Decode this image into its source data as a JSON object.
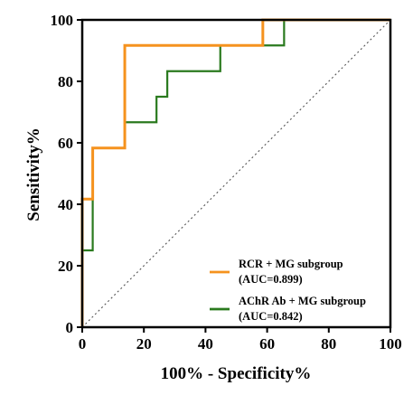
{
  "chart_data": {
    "type": "line",
    "title": "",
    "xlabel": "100% - Specificity%",
    "ylabel": "Sensitivity%",
    "xlim": [
      0,
      100
    ],
    "ylim": [
      0,
      100
    ],
    "xticks": [
      "0",
      "20",
      "40",
      "60",
      "80",
      "100"
    ],
    "yticks": [
      "0",
      "20",
      "40",
      "60",
      "80",
      "100"
    ],
    "grid": false,
    "legend_position": "bottom-right",
    "reference_line": {
      "x": [
        0,
        100
      ],
      "y": [
        0,
        100
      ],
      "style": "dotted",
      "color": "#555555"
    },
    "series": [
      {
        "name": "RCR + MG subgroup",
        "name_line2": "(AUC=0.899)",
        "color": "#F5921E",
        "x": [
          0,
          0,
          3.4,
          3.4,
          13.8,
          13.8,
          58.6,
          58.6,
          100
        ],
        "y": [
          0,
          41.7,
          41.7,
          58.3,
          58.3,
          91.7,
          91.7,
          100,
          100
        ]
      },
      {
        "name": "AChR Ab + MG subgroup",
        "name_line2": "(AUC=0.842)",
        "color": "#2A7A1E",
        "x": [
          0,
          0,
          3.4,
          3.4,
          13.8,
          13.8,
          24.1,
          24.1,
          27.6,
          27.6,
          44.8,
          44.8,
          58.6,
          58.6,
          65.5,
          65.5,
          100
        ],
        "y": [
          0,
          25,
          25,
          58.3,
          58.3,
          66.7,
          66.7,
          75,
          75,
          83.3,
          83.3,
          91.7,
          91.7,
          91.7,
          91.7,
          100,
          100
        ]
      }
    ]
  }
}
